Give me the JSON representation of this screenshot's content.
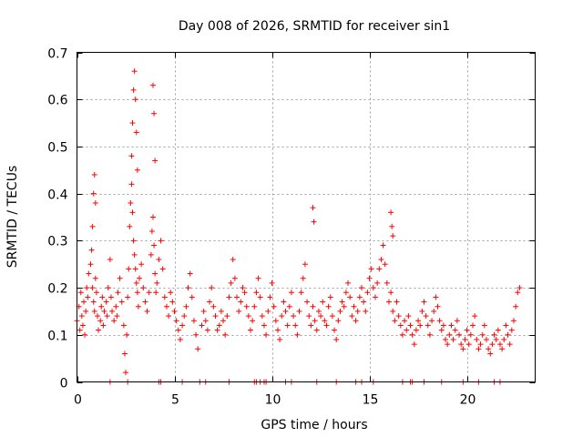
{
  "chart_data": {
    "type": "scatter",
    "title": "Day 008 of 2026, SRMTID for receiver sin1",
    "xlabel": "GPS time / hours",
    "ylabel": "SRMTID / TECUs",
    "xlim": [
      0,
      23.5
    ],
    "ylim": [
      0,
      0.7
    ],
    "xticks": [
      0,
      5,
      10,
      15,
      20
    ],
    "xtick_labels": [
      "0",
      "5",
      "10",
      "15",
      "20"
    ],
    "yticks": [
      0,
      0.1,
      0.2,
      0.3,
      0.4,
      0.5,
      0.6,
      0.7
    ],
    "ytick_labels": [
      "0",
      "0.1",
      "0.2",
      "0.3",
      "0.4",
      "0.5",
      "0.6",
      "0.7"
    ],
    "grid": true,
    "marker": "+",
    "color": "#ff0000",
    "series": [
      {
        "name": "SRMTID",
        "x": [
          0.0,
          0.1,
          0.15,
          0.2,
          0.25,
          0.3,
          0.35,
          0.4,
          0.45,
          0.5,
          0.55,
          0.6,
          0.7,
          0.75,
          0.8,
          0.85,
          0.9,
          0.95,
          1.0,
          1.05,
          1.1,
          1.2,
          1.25,
          1.3,
          1.35,
          1.4,
          1.5,
          1.55,
          1.6,
          1.7,
          1.75,
          1.8,
          1.9,
          2.0,
          2.05,
          2.1,
          2.2,
          2.3,
          2.4,
          2.45,
          2.5,
          2.55,
          2.6,
          2.65,
          2.7,
          2.75,
          2.8,
          2.85,
          2.9,
          2.95,
          3.0,
          3.05,
          3.1,
          3.15,
          3.2,
          3.3,
          3.4,
          3.5,
          3.6,
          3.7,
          3.8,
          3.85,
          3.9,
          3.95,
          4.0,
          4.05,
          4.1,
          4.2,
          4.3,
          4.4,
          4.5,
          4.6,
          4.7,
          4.8,
          4.9,
          5.0,
          5.1,
          5.2,
          5.3,
          5.4,
          5.5,
          5.6,
          5.7,
          5.8,
          5.9,
          6.0,
          6.1,
          6.2,
          6.4,
          6.5,
          6.6,
          6.7,
          6.8,
          6.9,
          7.0,
          7.1,
          7.2,
          7.3,
          7.4,
          7.5,
          7.6,
          7.7,
          7.8,
          7.9,
          8.0,
          8.1,
          8.2,
          8.3,
          8.4,
          8.5,
          8.6,
          8.7,
          8.8,
          8.9,
          9.0,
          9.1,
          9.2,
          9.3,
          9.4,
          9.5,
          9.6,
          9.7,
          9.8,
          9.9,
          10.0,
          10.1,
          10.2,
          10.3,
          10.4,
          10.5,
          10.6,
          10.7,
          10.8,
          10.9,
          11.0,
          11.1,
          11.2,
          11.3,
          11.4,
          11.5,
          11.6,
          11.7,
          11.8,
          11.9,
          12.0,
          12.1,
          12.2,
          12.3,
          12.4,
          12.5,
          12.6,
          12.7,
          12.8,
          12.9,
          13.0,
          13.1,
          13.2,
          13.3,
          13.4,
          13.5,
          13.6,
          13.7,
          13.8,
          13.9,
          14.0,
          14.1,
          14.2,
          14.3,
          14.4,
          14.5,
          14.6,
          14.7,
          14.8,
          14.9,
          15.0,
          15.1,
          15.2,
          15.3,
          15.4,
          15.5,
          15.6,
          15.7,
          15.8,
          15.9,
          16.0,
          16.1,
          16.2,
          16.3,
          16.4,
          16.5,
          16.6,
          16.7,
          16.8,
          16.9,
          17.0,
          17.1,
          17.2,
          17.3,
          17.4,
          17.5,
          17.6,
          17.7,
          17.8,
          17.9,
          18.0,
          18.1,
          18.2,
          18.3,
          18.4,
          18.5,
          18.6,
          18.7,
          18.8,
          18.9,
          19.0,
          19.1,
          19.2,
          19.3,
          19.4,
          19.5,
          19.6,
          19.7,
          19.8,
          19.9,
          20.0,
          20.1,
          20.2,
          20.3,
          20.4,
          20.5,
          20.6,
          20.7,
          20.8,
          20.9,
          21.0,
          21.1,
          21.2,
          21.3,
          21.4,
          21.5,
          21.6,
          21.7,
          21.8,
          21.9,
          22.0,
          22.1,
          22.2,
          22.3,
          22.4,
          22.5,
          22.6,
          22.7,
          0.8,
          0.85,
          0.9,
          0.95,
          2.8,
          2.85,
          2.9,
          2.95,
          3.0,
          3.05,
          3.1,
          3.9,
          3.95,
          4.0,
          12.1,
          12.15,
          16.1,
          16.15,
          16.2,
          1.7,
          2.6,
          4.2,
          4.3,
          5.4,
          6.3,
          6.6,
          7.8,
          9.1,
          9.2,
          9.4,
          9.6,
          9.7,
          10.7,
          11.0,
          12.3,
          13.3,
          14.3,
          14.6,
          15.2,
          16.7,
          17.1,
          17.2,
          17.8,
          18.7,
          19.8,
          20.6,
          21.4,
          21.7
        ],
        "y": [
          0.13,
          0.16,
          0.11,
          0.19,
          0.14,
          0.12,
          0.17,
          0.1,
          0.15,
          0.2,
          0.18,
          0.23,
          0.25,
          0.28,
          0.2,
          0.17,
          0.15,
          0.22,
          0.19,
          0.14,
          0.11,
          0.13,
          0.16,
          0.18,
          0.12,
          0.15,
          0.17,
          0.14,
          0.2,
          0.26,
          0.18,
          0.15,
          0.13,
          0.16,
          0.14,
          0.19,
          0.22,
          0.17,
          0.12,
          0.06,
          0.02,
          0.1,
          0.18,
          0.24,
          0.33,
          0.38,
          0.42,
          0.36,
          0.3,
          0.27,
          0.24,
          0.21,
          0.19,
          0.16,
          0.22,
          0.25,
          0.2,
          0.17,
          0.15,
          0.19,
          0.27,
          0.32,
          0.35,
          0.29,
          0.23,
          0.19,
          0.21,
          0.26,
          0.3,
          0.24,
          0.18,
          0.16,
          0.14,
          0.19,
          0.17,
          0.15,
          0.13,
          0.11,
          0.09,
          0.12,
          0.14,
          0.16,
          0.2,
          0.23,
          0.18,
          0.13,
          0.1,
          0.07,
          0.12,
          0.15,
          0.13,
          0.11,
          0.17,
          0.2,
          0.16,
          0.14,
          0.11,
          0.12,
          0.15,
          0.13,
          0.1,
          0.14,
          0.18,
          0.21,
          0.26,
          0.22,
          0.18,
          0.15,
          0.17,
          0.2,
          0.19,
          0.16,
          0.14,
          0.11,
          0.13,
          0.16,
          0.19,
          0.22,
          0.18,
          0.14,
          0.12,
          0.1,
          0.15,
          0.18,
          0.21,
          0.16,
          0.13,
          0.11,
          0.09,
          0.14,
          0.17,
          0.15,
          0.12,
          0.16,
          0.19,
          0.14,
          0.12,
          0.1,
          0.15,
          0.19,
          0.22,
          0.25,
          0.17,
          0.14,
          0.12,
          0.16,
          0.13,
          0.11,
          0.15,
          0.14,
          0.17,
          0.13,
          0.12,
          0.16,
          0.18,
          0.14,
          0.11,
          0.09,
          0.13,
          0.15,
          0.17,
          0.16,
          0.19,
          0.21,
          0.18,
          0.14,
          0.16,
          0.13,
          0.15,
          0.18,
          0.2,
          0.17,
          0.15,
          0.19,
          0.22,
          0.24,
          0.2,
          0.18,
          0.21,
          0.24,
          0.26,
          0.29,
          0.25,
          0.21,
          0.17,
          0.19,
          0.15,
          0.13,
          0.17,
          0.14,
          0.12,
          0.1,
          0.13,
          0.11,
          0.14,
          0.12,
          0.1,
          0.08,
          0.11,
          0.13,
          0.12,
          0.15,
          0.17,
          0.14,
          0.12,
          0.1,
          0.13,
          0.15,
          0.18,
          0.16,
          0.13,
          0.11,
          0.12,
          0.09,
          0.08,
          0.1,
          0.12,
          0.09,
          0.11,
          0.13,
          0.1,
          0.08,
          0.07,
          0.09,
          0.11,
          0.08,
          0.1,
          0.12,
          0.14,
          0.09,
          0.07,
          0.08,
          0.1,
          0.12,
          0.09,
          0.07,
          0.06,
          0.08,
          0.1,
          0.09,
          0.11,
          0.08,
          0.07,
          0.09,
          0.12,
          0.1,
          0.08,
          0.11,
          0.13,
          0.16,
          0.19,
          0.2,
          0.33,
          0.4,
          0.44,
          0.38,
          0.48,
          0.55,
          0.62,
          0.66,
          0.6,
          0.53,
          0.45,
          0.63,
          0.57,
          0.47,
          0.37,
          0.34,
          0.36,
          0.33,
          0.31,
          0.0,
          0.0,
          0.0,
          0.0,
          0.0,
          0.0,
          0.0,
          0.0,
          0.0,
          0.0,
          0.0,
          0.0,
          0.0,
          0.0,
          0.0,
          0.0,
          0.0,
          0.0,
          0.0,
          0.0,
          0.0,
          0.0,
          0.0,
          0.0,
          0.0,
          0.0,
          0.0,
          0.0,
          0.0
        ]
      }
    ]
  }
}
